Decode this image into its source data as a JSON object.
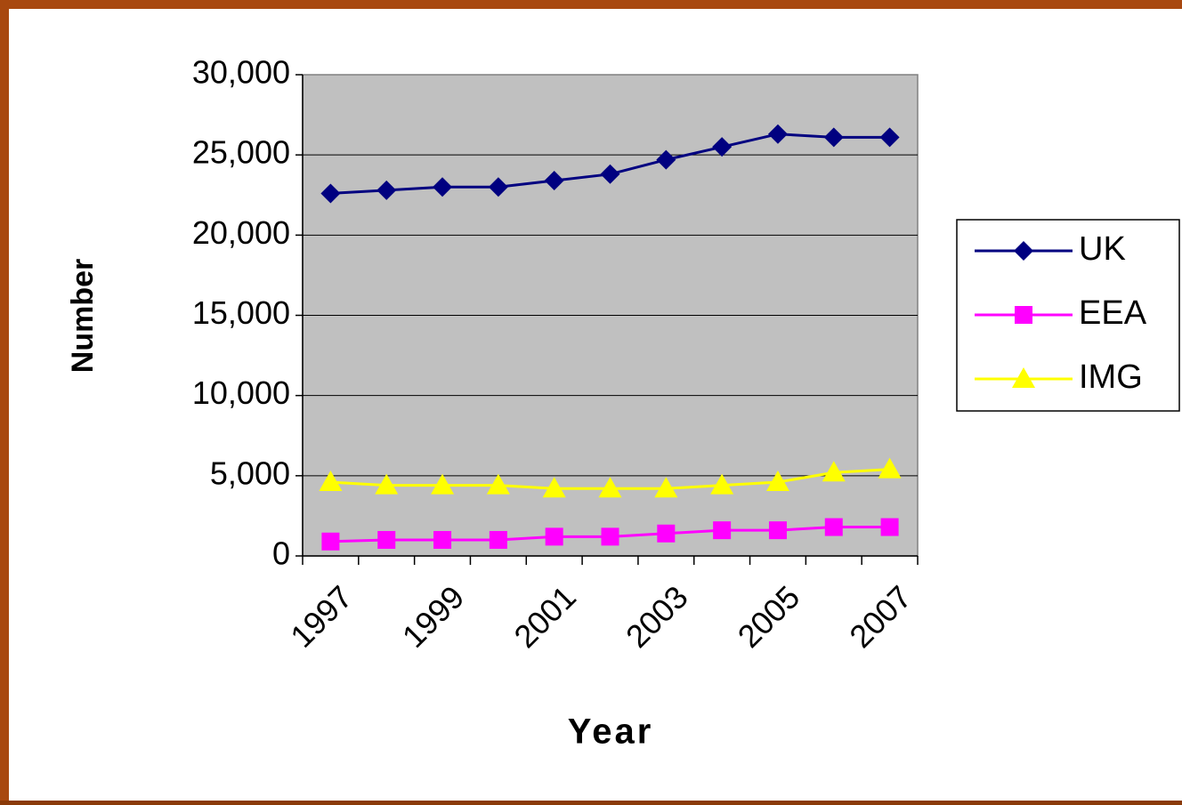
{
  "chart_data": {
    "type": "line",
    "x_label": "Year",
    "y_label": "Number",
    "categories": [
      "1997",
      null,
      "1999",
      null,
      "2001",
      null,
      "2003",
      null,
      "2005",
      null,
      "2007"
    ],
    "series": [
      {
        "name": "UK",
        "color": "#000080",
        "marker": "diamond",
        "values": [
          22600,
          22800,
          23000,
          23000,
          23400,
          23800,
          24700,
          25500,
          26300,
          26100,
          26100
        ]
      },
      {
        "name": "EEA",
        "color": "#ff00ff",
        "marker": "square",
        "values": [
          900,
          1000,
          1000,
          1000,
          1200,
          1200,
          1400,
          1600,
          1600,
          1800,
          1800
        ]
      },
      {
        "name": "IMG",
        "color": "#ffff00",
        "marker": "triangle",
        "values": [
          4600,
          4400,
          4400,
          4400,
          4200,
          4200,
          4200,
          4400,
          4600,
          5200,
          5400
        ]
      }
    ],
    "ylim": [
      0,
      30000
    ],
    "yticks": [
      0,
      {
        "value": 5000,
        "label": "5,000"
      },
      {
        "value": 10000,
        "label": "10,000"
      },
      {
        "value": 15000,
        "label": "15,000"
      },
      {
        "value": 20000,
        "label": "20,000"
      },
      {
        "value": 25000,
        "label": "25,000"
      },
      {
        "value": 30000,
        "label": "30,000"
      }
    ],
    "grid": true,
    "legend": "right",
    "plot_background": "#c0c0c0"
  }
}
